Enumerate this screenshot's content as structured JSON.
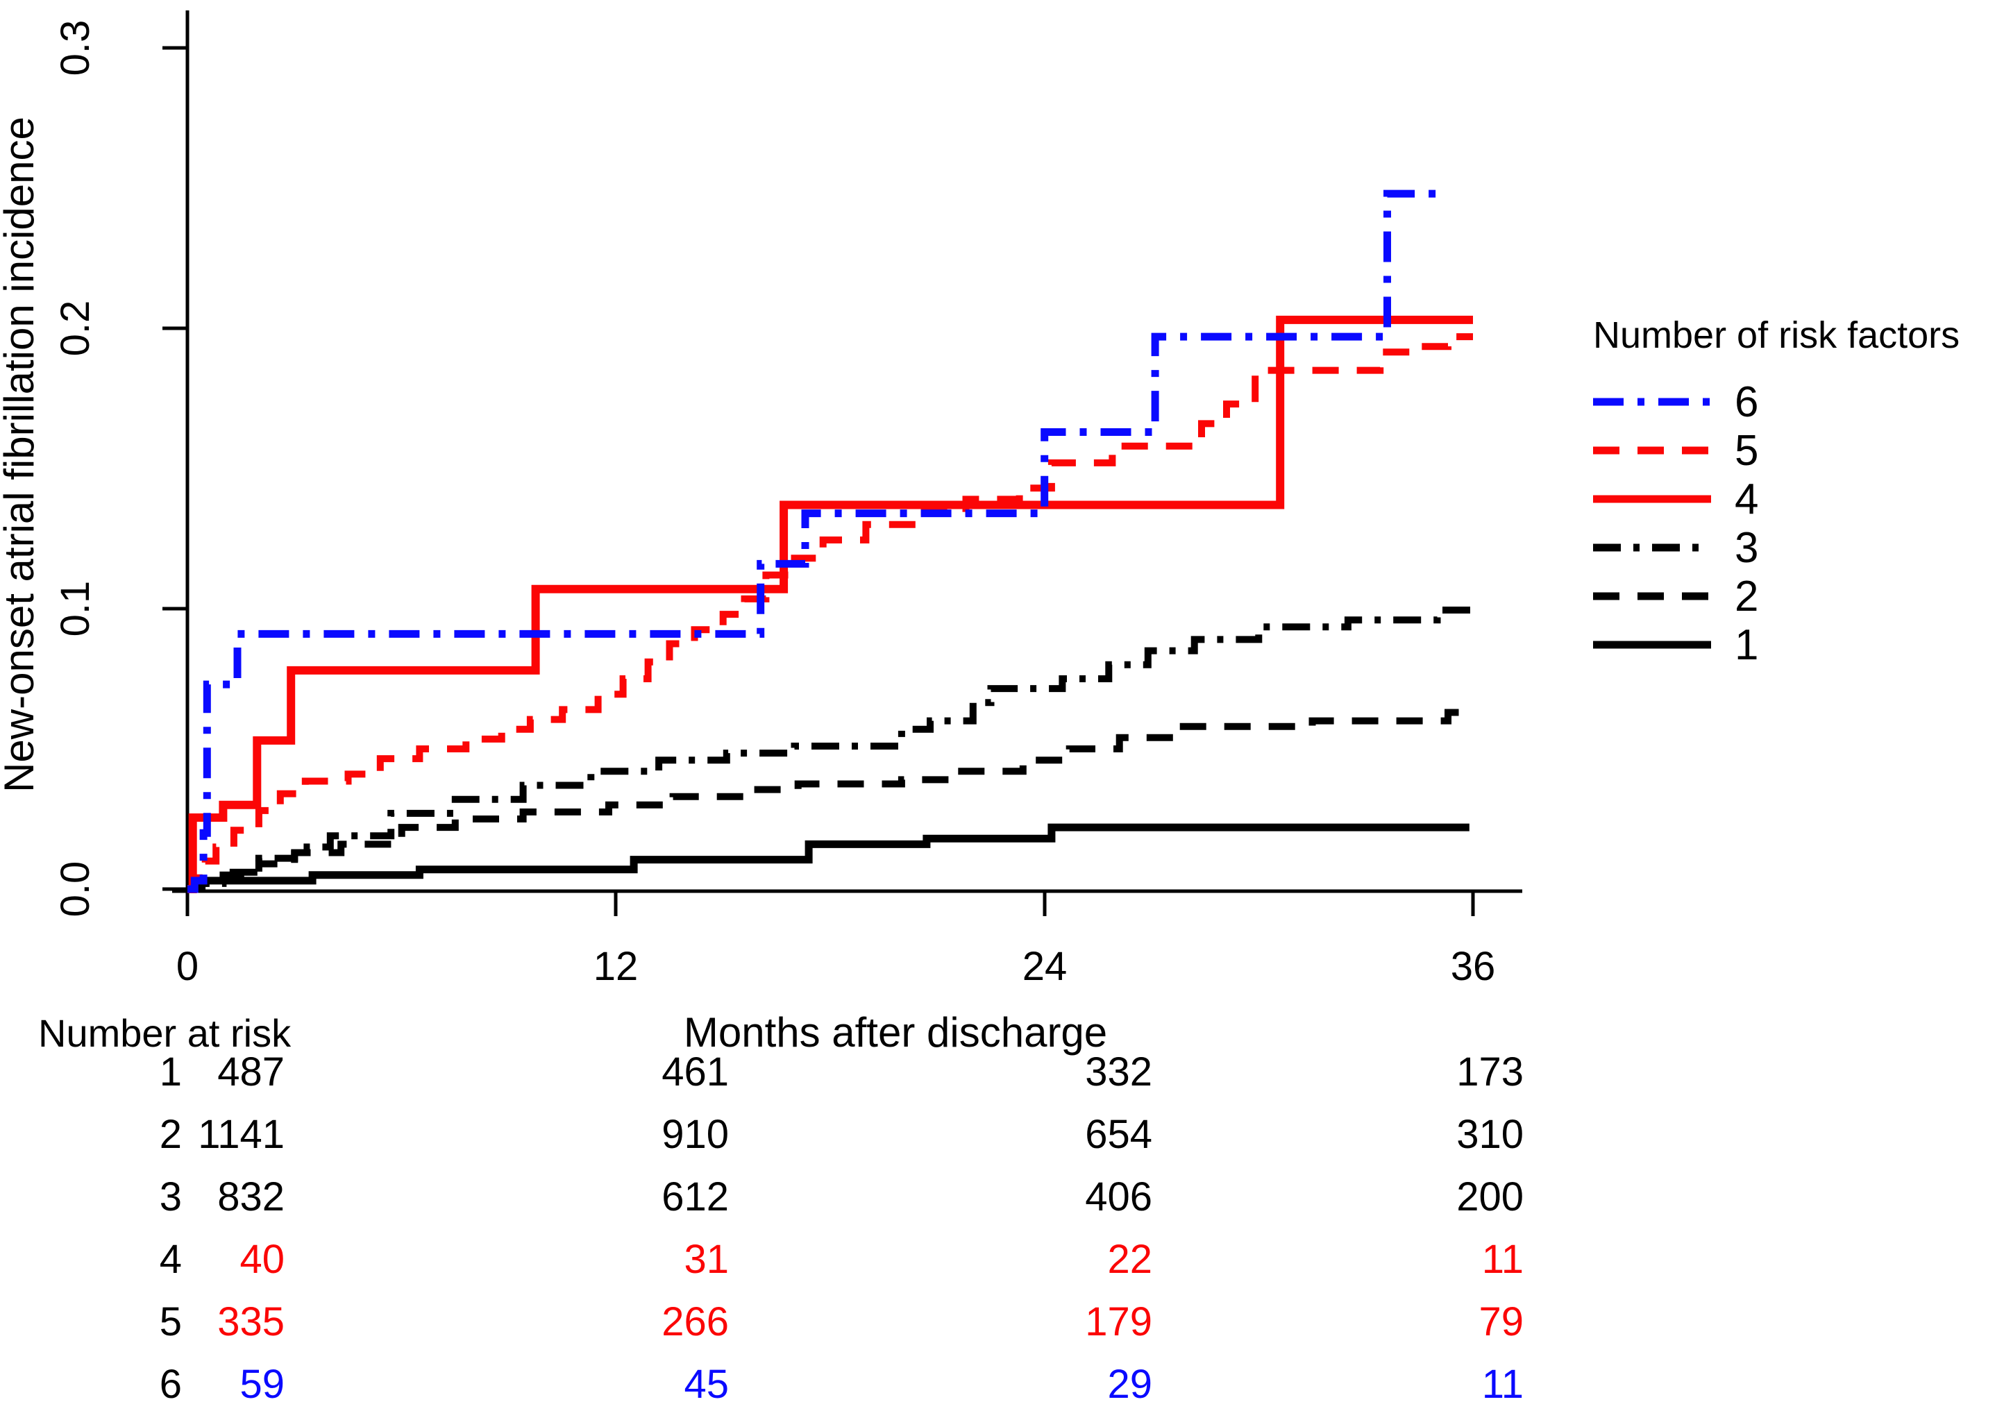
{
  "chart_data": {
    "type": "line",
    "subtype": "step-after-cumulative-incidence",
    "title": "",
    "xlabel": "Months after discharge",
    "ylabel": "New-onset atrial fibrillation incidence",
    "xlim": [
      0,
      36
    ],
    "ylim": [
      0,
      0.3
    ],
    "xticks": [
      "0",
      "12",
      "24",
      "36"
    ],
    "yticks": [
      "0.0",
      "0.1",
      "0.2",
      "0.3"
    ],
    "grid": "off",
    "legend_position": "right",
    "legend_title": "Number of risk factors",
    "series": [
      {
        "label": "6",
        "color": "#0a0aff",
        "dash": "44 20 10 20",
        "width": 11,
        "points": [
          [
            0,
            0
          ],
          [
            0.2,
            0.003
          ],
          [
            0.45,
            0.02
          ],
          [
            0.55,
            0.073
          ],
          [
            1.4,
            0.091
          ],
          [
            16.05,
            0.116
          ],
          [
            17.3,
            0.134
          ],
          [
            24,
            0.163
          ],
          [
            27.1,
            0.197
          ],
          [
            33.6,
            0.248
          ]
        ],
        "end": 35.3
      },
      {
        "label": "5",
        "color": "#fb0606",
        "dash": "38 26",
        "width": 10,
        "points": [
          [
            0,
            0
          ],
          [
            0.2,
            0.004
          ],
          [
            0.5,
            0.01
          ],
          [
            0.8,
            0.015
          ],
          [
            1.3,
            0.021
          ],
          [
            2,
            0.028
          ],
          [
            2.6,
            0.034
          ],
          [
            3.3,
            0.0385
          ],
          [
            4.5,
            0.041
          ],
          [
            5.4,
            0.0465
          ],
          [
            6.5,
            0.05
          ],
          [
            7.8,
            0.0535
          ],
          [
            8.8,
            0.057
          ],
          [
            9.6,
            0.0605
          ],
          [
            10.5,
            0.064
          ],
          [
            11.5,
            0.0695
          ],
          [
            12.2,
            0.075
          ],
          [
            12.9,
            0.081
          ],
          [
            13.5,
            0.0875
          ],
          [
            14.2,
            0.0925
          ],
          [
            15,
            0.098
          ],
          [
            15.6,
            0.1035
          ],
          [
            16.2,
            0.112
          ],
          [
            17,
            0.118
          ],
          [
            17.8,
            0.1245
          ],
          [
            19,
            0.13
          ],
          [
            20.5,
            0.1345
          ],
          [
            21.8,
            0.139
          ],
          [
            23.3,
            0.143
          ],
          [
            24.2,
            0.152
          ],
          [
            25.9,
            0.158
          ],
          [
            28.4,
            0.166
          ],
          [
            29.1,
            0.173
          ],
          [
            29.9,
            0.185
          ],
          [
            33.4,
            0.1915
          ],
          [
            34.3,
            0.1935
          ],
          [
            35.3,
            0.197
          ]
        ],
        "end": 36
      },
      {
        "label": "4",
        "color": "#fb0606",
        "dash": "",
        "width": 12,
        "points": [
          [
            0,
            0
          ],
          [
            0.15,
            0.0255
          ],
          [
            1,
            0.03
          ],
          [
            1.95,
            0.053
          ],
          [
            2.9,
            0.078
          ],
          [
            9.75,
            0.107
          ],
          [
            16.7,
            0.137
          ],
          [
            30.6,
            0.203
          ]
        ],
        "end": 36
      },
      {
        "label": "3",
        "color": "#000000",
        "dash": "40 18 9 18",
        "width": 10,
        "points": [
          [
            0,
            0
          ],
          [
            0.3,
            0.002
          ],
          [
            1,
            0.006
          ],
          [
            2,
            0.011
          ],
          [
            3,
            0.015
          ],
          [
            4,
            0.019
          ],
          [
            5.7,
            0.027
          ],
          [
            7.5,
            0.032
          ],
          [
            9.4,
            0.037
          ],
          [
            11.3,
            0.042
          ],
          [
            13.2,
            0.046
          ],
          [
            15.1,
            0.0485
          ],
          [
            17,
            0.051
          ],
          [
            20,
            0.057
          ],
          [
            20.8,
            0.06
          ],
          [
            22,
            0.0665
          ],
          [
            22.5,
            0.0715
          ],
          [
            24.5,
            0.075
          ],
          [
            25.8,
            0.08
          ],
          [
            26.9,
            0.085
          ],
          [
            28.2,
            0.089
          ],
          [
            30,
            0.0935
          ],
          [
            32.5,
            0.096
          ],
          [
            35,
            0.0995
          ]
        ],
        "end": 36
      },
      {
        "label": "2",
        "color": "#000000",
        "dash": "38 26",
        "width": 10,
        "points": [
          [
            0,
            0
          ],
          [
            0.3,
            0.002
          ],
          [
            1,
            0.005
          ],
          [
            2,
            0.009
          ],
          [
            3,
            0.013
          ],
          [
            4.3,
            0.016
          ],
          [
            6,
            0.022
          ],
          [
            7.5,
            0.025
          ],
          [
            9.4,
            0.0275
          ],
          [
            11.8,
            0.03
          ],
          [
            13.6,
            0.033
          ],
          [
            15.6,
            0.0355
          ],
          [
            17.1,
            0.0375
          ],
          [
            20,
            0.039
          ],
          [
            21.5,
            0.042
          ],
          [
            23.4,
            0.046
          ],
          [
            24.7,
            0.05
          ],
          [
            26.1,
            0.054
          ],
          [
            27.6,
            0.058
          ],
          [
            31.5,
            0.06
          ],
          [
            35.3,
            0.063
          ]
        ],
        "end": 36
      },
      {
        "label": "1",
        "color": "#000000",
        "dash": "",
        "width": 11,
        "points": [
          [
            0,
            0
          ],
          [
            0.4,
            0.003
          ],
          [
            3.5,
            0.005
          ],
          [
            6.5,
            0.007
          ],
          [
            12.5,
            0.0105
          ],
          [
            17.4,
            0.016
          ],
          [
            20.7,
            0.018
          ],
          [
            24.2,
            0.022
          ]
        ],
        "end": 35.9
      }
    ]
  },
  "risk_table": {
    "title": "Number at risk",
    "rows": [
      {
        "label": "1",
        "color": "#000000",
        "values": [
          "487",
          "461",
          "332",
          "173"
        ]
      },
      {
        "label": "2",
        "color": "#000000",
        "values": [
          "1141",
          "910",
          "654",
          "310"
        ]
      },
      {
        "label": "3",
        "color": "#000000",
        "values": [
          "832",
          "612",
          "406",
          "200"
        ]
      },
      {
        "label": "4",
        "color": "#fb0606",
        "values": [
          "40",
          "31",
          "22",
          "11"
        ]
      },
      {
        "label": "5",
        "color": "#fb0606",
        "values": [
          "335",
          "266",
          "179",
          "79"
        ]
      },
      {
        "label": "6",
        "color": "#0a0aff",
        "values": [
          "59",
          "45",
          "29",
          "11"
        ]
      }
    ]
  }
}
